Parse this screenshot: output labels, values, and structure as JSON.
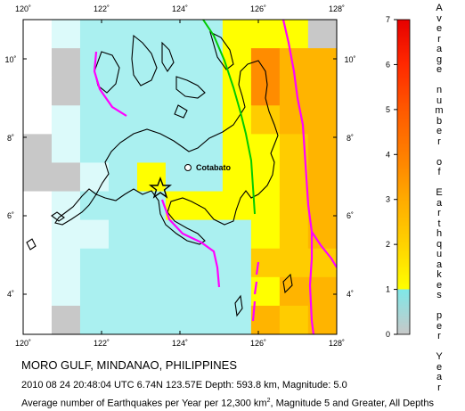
{
  "map": {
    "lon_ticks": [
      "120˚",
      "122˚",
      "124˚",
      "126˚",
      "128˚"
    ],
    "lat_ticks": [
      "4˚",
      "6˚",
      "8˚",
      "10˚"
    ],
    "city_label": "Cotabato",
    "epicenter_icon": "star-icon",
    "colors": {
      "grid_gray": "#c8c8c8",
      "grid_cyan_light": "#dcfafa",
      "grid_cyan": "#aaf0f0",
      "grid_yellow": "#ffff00",
      "grid_gold": "#ffcc00",
      "grid_orange_light": "#ffb400",
      "grid_orange": "#ff8c00",
      "plate_boundary": "#ff00ff",
      "fault": "#00cc00"
    }
  },
  "scale": {
    "ticks": [
      "7",
      "6",
      "5",
      "4",
      "3",
      "2",
      "1",
      "0"
    ],
    "label": "Average number of Earthquakes per Year"
  },
  "caption": {
    "title": "MORO GULF, MINDANAO, PHILIPPINES",
    "event_line": "2010 08 24 20:48:04 UTC 6.74N 123.57E Depth: 593.8 km, Magnitude: 5.0",
    "average_line_prefix": "Average number of Earthquakes per Year per 12,300 km",
    "average_line_sup": "2",
    "average_line_suffix": ", Magnitude 5 and Greater, All Depths"
  }
}
